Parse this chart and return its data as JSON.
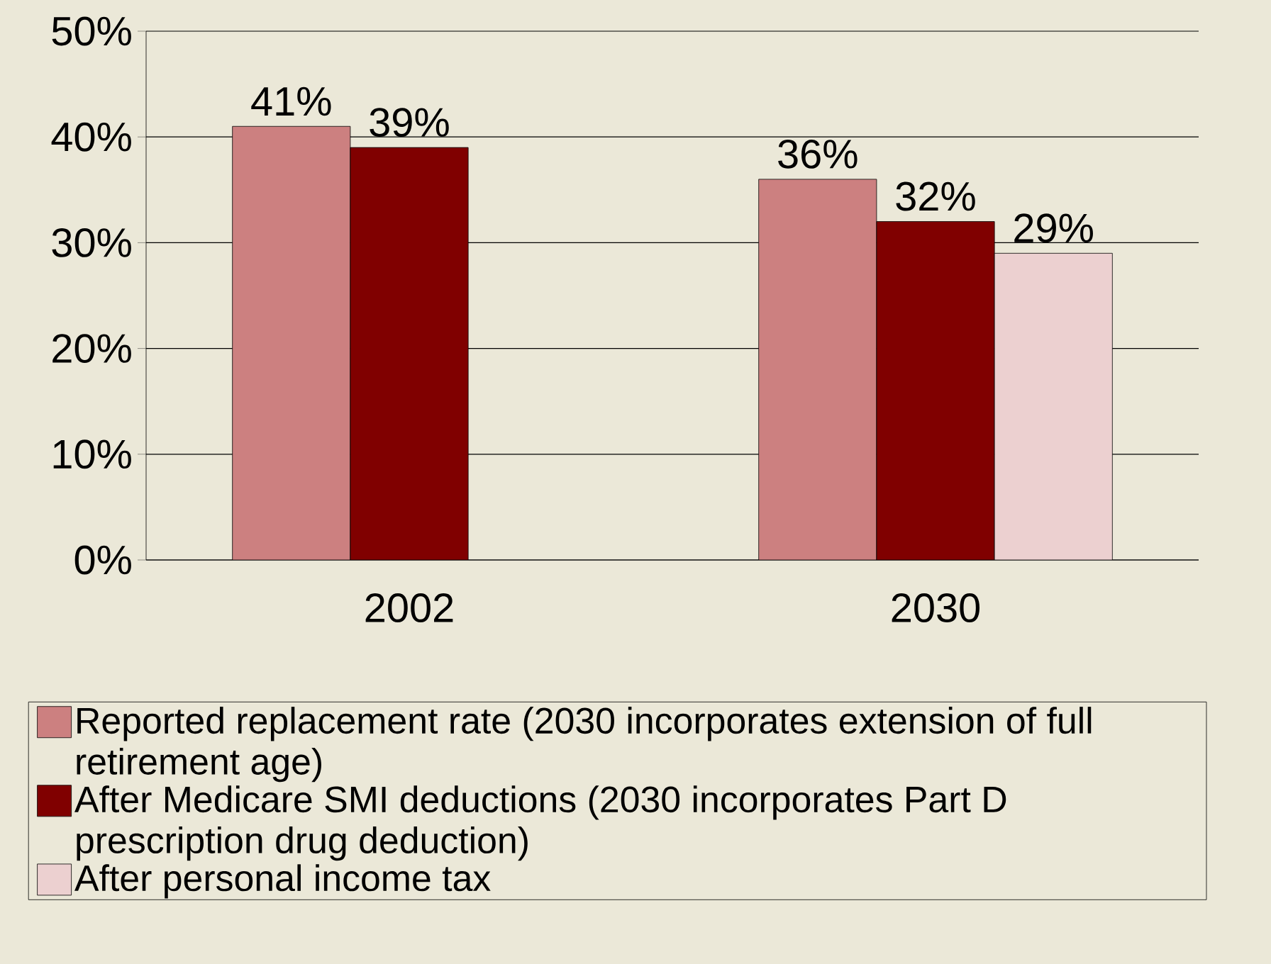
{
  "chart_data": {
    "type": "bar",
    "categories": [
      "2002",
      "2030"
    ],
    "series": [
      {
        "name": "Reported replacement rate (2030 incorporates extension of full retirement age)",
        "color": "#cc8080",
        "values": [
          41,
          36
        ],
        "value_labels": [
          "41%",
          "36%"
        ]
      },
      {
        "name": "After Medicare SMI deductions (2030 incorporates Part D prescription drug deduction)",
        "color": "#800000",
        "values": [
          39,
          32
        ],
        "value_labels": [
          "39%",
          "32%"
        ]
      },
      {
        "name": "After personal income tax",
        "color": "#ecd0d0",
        "values": [
          null,
          29
        ],
        "value_labels": [
          null,
          "29%"
        ]
      }
    ],
    "ylim": [
      0,
      50
    ],
    "yticks": [
      {
        "value": 0,
        "label": "0%"
      },
      {
        "value": 10,
        "label": "10%"
      },
      {
        "value": 20,
        "label": "20%"
      },
      {
        "value": 30,
        "label": "30%"
      },
      {
        "value": 40,
        "label": "40%"
      },
      {
        "value": 50,
        "label": "50%"
      }
    ],
    "grid": "y",
    "legend": "bottom"
  }
}
